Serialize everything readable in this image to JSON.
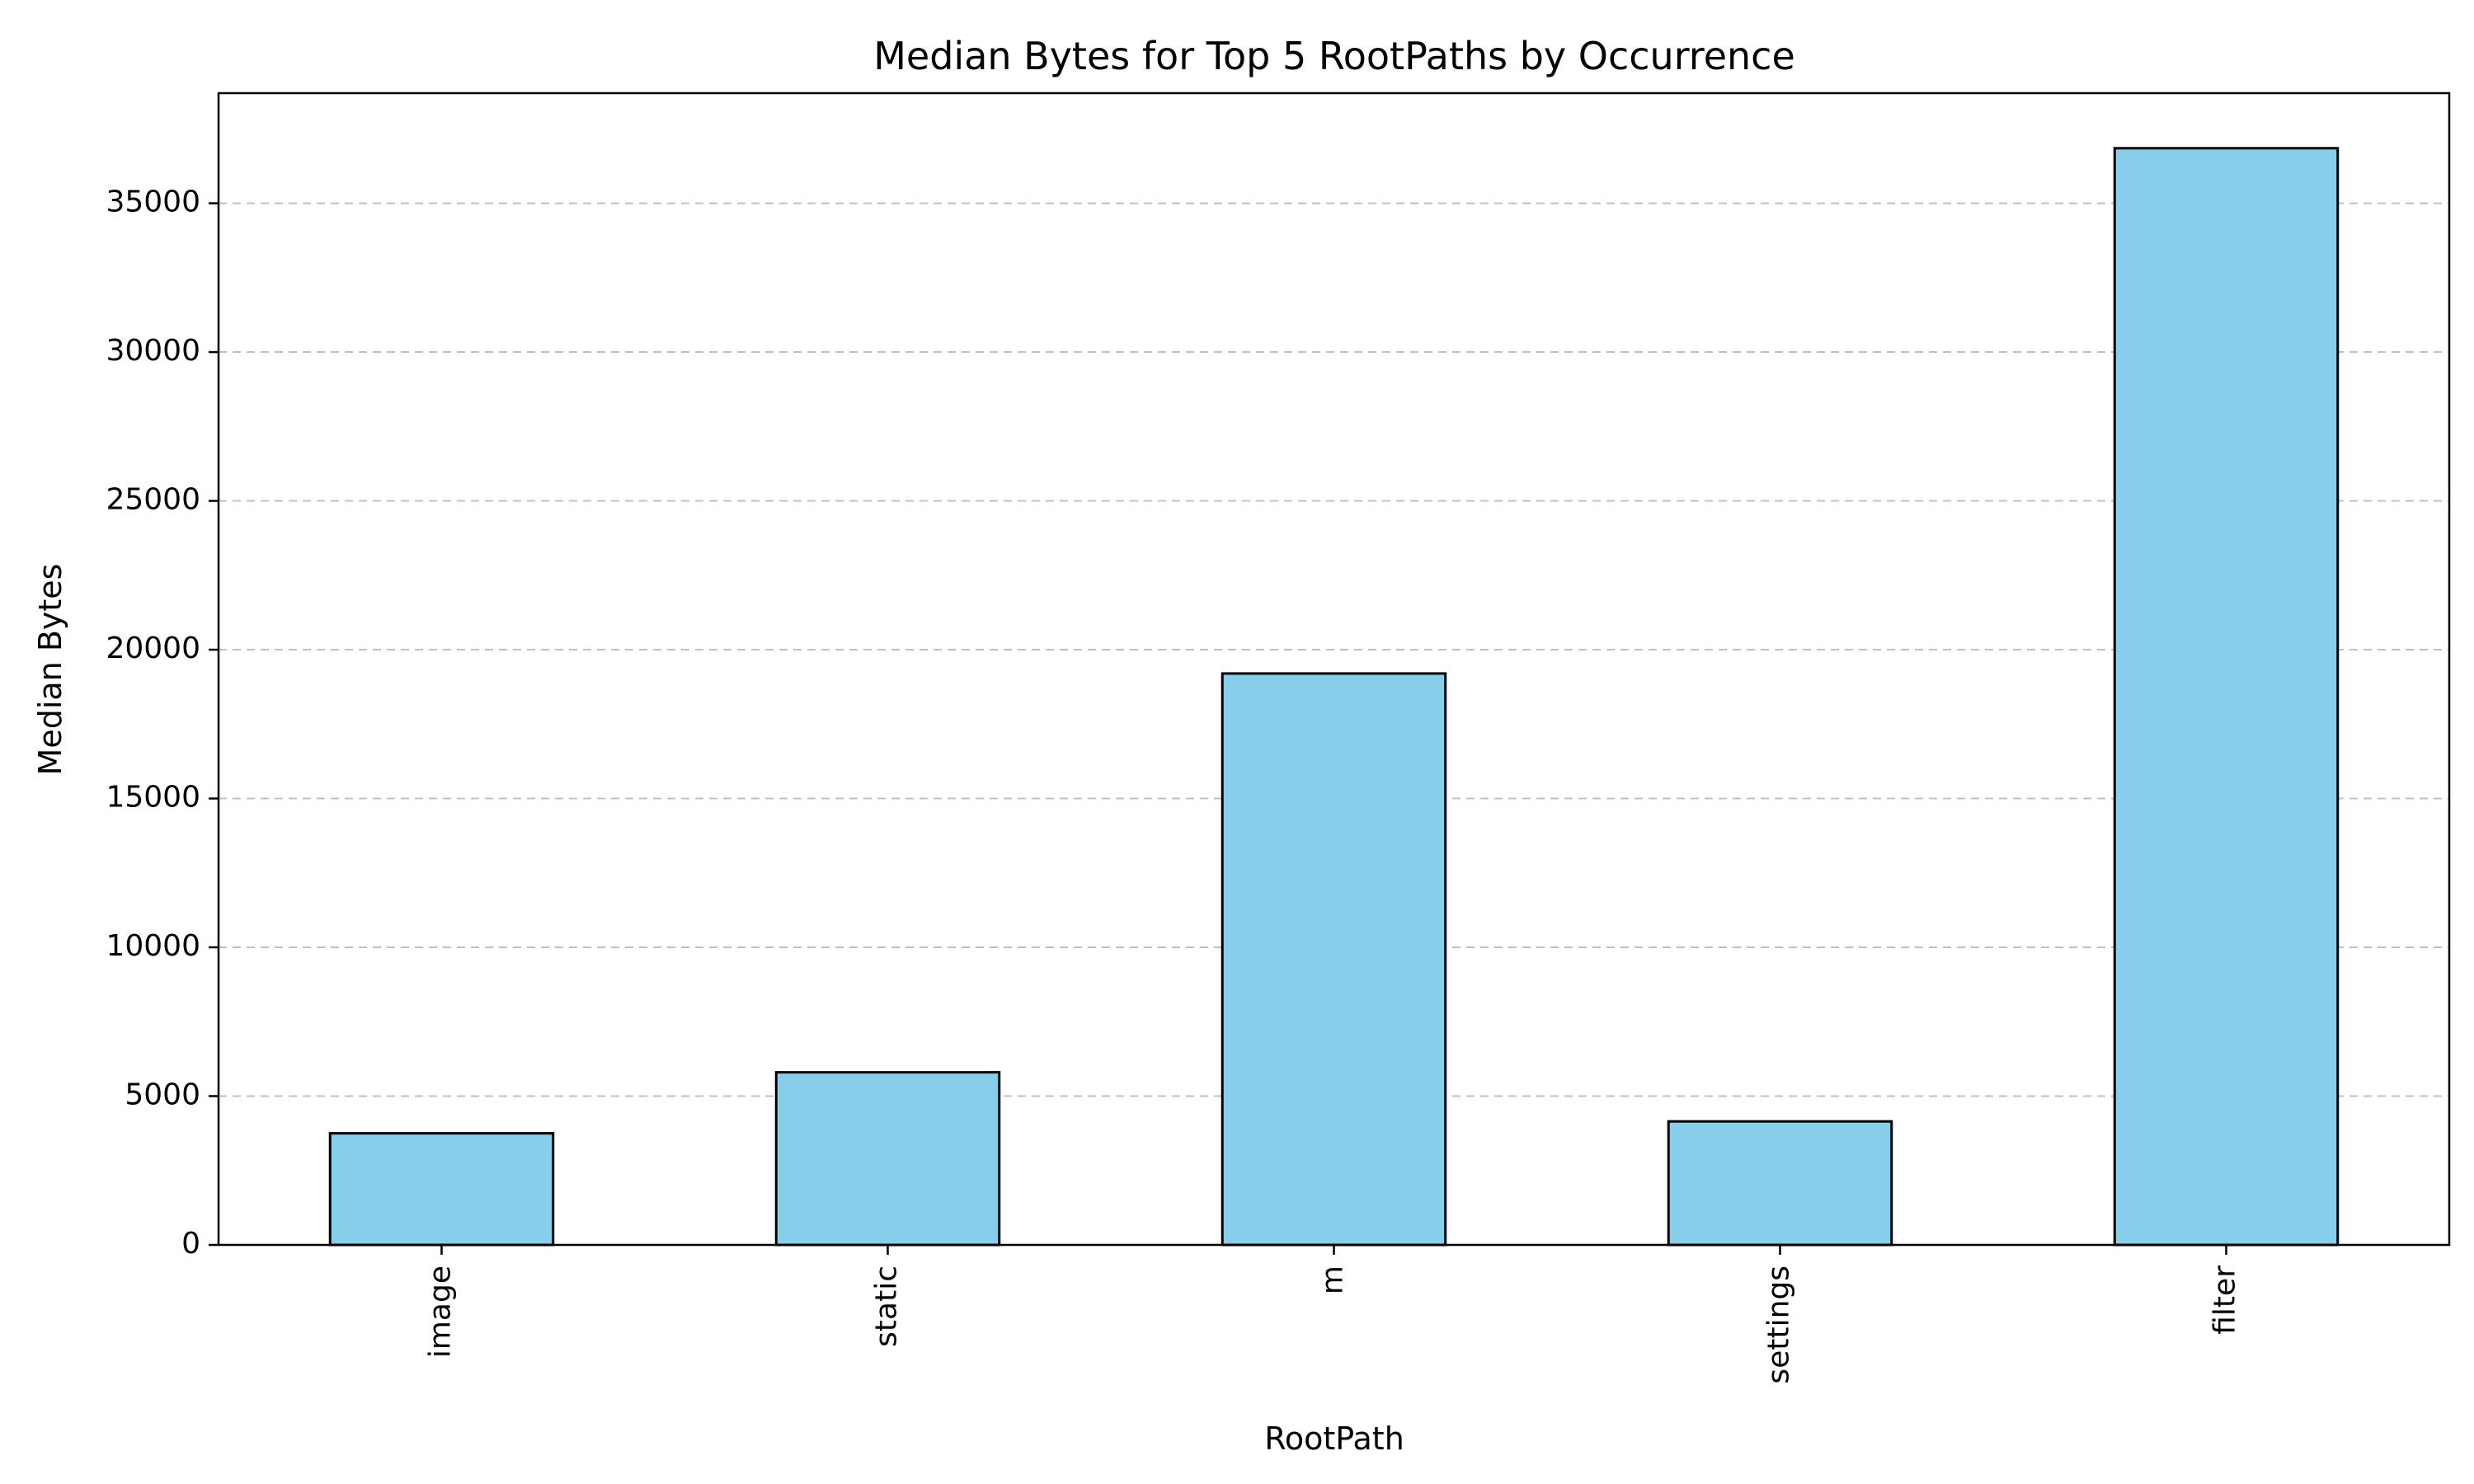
{
  "chart_data": {
    "type": "bar",
    "title": "Median Bytes for Top 5 RootPaths by Occurrence",
    "xlabel": "RootPath",
    "ylabel": "Median Bytes",
    "categories": [
      "image",
      "static",
      "m",
      "settings",
      "filter"
    ],
    "values": [
      3750,
      5800,
      19200,
      4150,
      36850
    ],
    "ylim": [
      0,
      38700
    ],
    "yticks": [
      0,
      5000,
      10000,
      15000,
      20000,
      25000,
      30000,
      35000
    ],
    "ytick_labels": [
      "0",
      "5000",
      "10000",
      "15000",
      "20000",
      "25000",
      "30000",
      "35000"
    ],
    "grid": {
      "axis": "y",
      "style": "dashed",
      "color": "#c0c0c0"
    },
    "bar_color": "#87ceeb",
    "bar_edge_color": "#000000",
    "x_tick_rotation": "vertical"
  }
}
